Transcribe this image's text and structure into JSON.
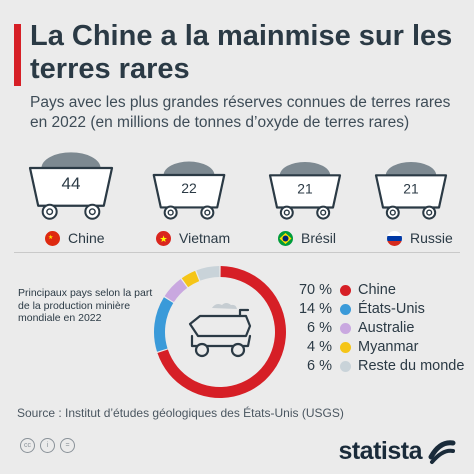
{
  "title": "La Chine a la mainmise sur les terres rares",
  "subtitle": "Pays avec les plus grandes réserves connues de terres rares en 2022 (en millions de tonnes d’oxyde de terres rares)",
  "production_label": "Principaux pays selon la part de la production minière mondiale en 2022",
  "source": "Source : Institut d’études géologiques des États-Unis (USGS)",
  "brand": "statista",
  "license_icons": [
    "cc-icon",
    "by-icon",
    "equals-icon"
  ],
  "colors": {
    "red": "#d61f26",
    "blue": "#3a9ad9",
    "purple": "#c9a8e0",
    "yellow": "#f5c518",
    "grey": "#c9d3d9",
    "title_bar": "#d61f26"
  },
  "chart_data": [
    {
      "type": "bar",
      "title": "Pays avec les plus grandes réserves connues de terres rares en 2022",
      "ylabel": "millions de tonnes d’oxyde de terres rares",
      "categories": [
        "Chine",
        "Vietnam",
        "Brésil",
        "Russie"
      ],
      "values": [
        44,
        22,
        21,
        21
      ],
      "labels": [
        "44",
        "22",
        "21",
        "21"
      ],
      "flag_icons": [
        "china-flag-icon",
        "vietnam-flag-icon",
        "brazil-flag-icon",
        "russia-flag-icon"
      ]
    },
    {
      "type": "pie",
      "title": "Principaux pays selon la part de la production minière mondiale en 2022",
      "categories": [
        "Chine",
        "États-Unis",
        "Australie",
        "Myanmar",
        "Reste du monde"
      ],
      "values": [
        70,
        14,
        6,
        4,
        6
      ],
      "labels": [
        "70 %",
        "14 %",
        "6 %",
        "4 %",
        "6 %"
      ],
      "colors": [
        "#d61f26",
        "#3a9ad9",
        "#c9a8e0",
        "#f5c518",
        "#c9d3d9"
      ],
      "center_icon": "mining-truck-icon"
    }
  ]
}
